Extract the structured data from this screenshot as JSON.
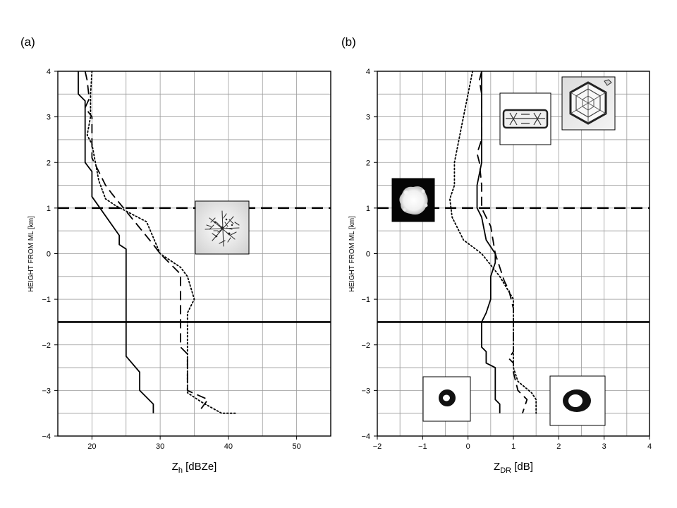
{
  "chart_data": [
    {
      "panel_label": "(a)",
      "type": "line",
      "xlabel_main": "Z",
      "xlabel_sub": "h",
      "xlabel_rest": " [dBZe]",
      "ylabel": "HEIGHT FROM ML [km]",
      "xlim": [
        15,
        55
      ],
      "ylim": [
        -4,
        4
      ],
      "grid": true,
      "xticks": [
        20,
        30,
        40,
        50
      ],
      "yticks": [
        -4,
        -3,
        -2,
        -1,
        0,
        1,
        2,
        3,
        4
      ],
      "series": [
        {
          "style": "solid",
          "points": [
            [
              18,
              4
            ],
            [
              18,
              3.5
            ],
            [
              19,
              3.35
            ],
            [
              19,
              2
            ],
            [
              20,
              1.8
            ],
            [
              20,
              1.25
            ],
            [
              24,
              0.4
            ],
            [
              24,
              0.2
            ],
            [
              25,
              0.1
            ],
            [
              25,
              -2.25
            ],
            [
              27,
              -2.6
            ],
            [
              27,
              -3
            ],
            [
              29,
              -3.3
            ],
            [
              29,
              -3.5
            ]
          ]
        },
        {
          "style": "dashed",
          "points": [
            [
              19,
              4
            ],
            [
              19.3,
              3.8
            ],
            [
              19.6,
              3.4
            ],
            [
              19,
              3.2
            ],
            [
              20,
              3
            ],
            [
              20,
              2.1
            ],
            [
              22,
              1.5
            ],
            [
              23,
              1.3
            ],
            [
              29,
              0.2
            ],
            [
              30,
              0
            ],
            [
              33,
              -0.45
            ],
            [
              33,
              -2.05
            ],
            [
              34,
              -2.2
            ],
            [
              34,
              -3
            ],
            [
              37,
              -3.2
            ],
            [
              36,
              -3.4
            ]
          ]
        },
        {
          "style": "dotted",
          "points": [
            [
              20,
              4
            ],
            [
              19.8,
              3.5
            ],
            [
              19.8,
              3
            ],
            [
              19.3,
              2.6
            ],
            [
              20,
              2.4
            ],
            [
              21,
              1.6
            ],
            [
              22,
              1.2
            ],
            [
              23.5,
              1.05
            ],
            [
              28,
              0.7
            ],
            [
              30,
              0
            ],
            [
              33,
              -0.3
            ],
            [
              34,
              -0.5
            ],
            [
              35,
              -1
            ],
            [
              34,
              -1.3
            ],
            [
              34,
              -3.05
            ],
            [
              36,
              -3.25
            ],
            [
              39,
              -3.5
            ],
            [
              41,
              -3.5
            ]
          ]
        }
      ],
      "reference_lines": [
        {
          "y": 1,
          "style": "dashed"
        },
        {
          "y": -1.5,
          "style": "solid"
        }
      ],
      "inset_images": [
        "snowflake-aggregate"
      ]
    },
    {
      "panel_label": "(b)",
      "type": "line",
      "xlabel_main": "Z",
      "xlabel_sub": "DR",
      "xlabel_rest": " [dB]",
      "ylabel": "HEIGHT FROM ML [km]",
      "xlim": [
        -2,
        4
      ],
      "ylim": [
        -4,
        4
      ],
      "grid": true,
      "xticks": [
        -2,
        -1,
        0,
        1,
        2,
        3,
        4
      ],
      "yticks": [
        -4,
        -3,
        -2,
        -1,
        0,
        1,
        2,
        3,
        4
      ],
      "series": [
        {
          "style": "solid",
          "points": [
            [
              0.3,
              4
            ],
            [
              0.3,
              2
            ],
            [
              0.2,
              1.5
            ],
            [
              0.2,
              1
            ],
            [
              0.3,
              0.8
            ],
            [
              0.4,
              0.3
            ],
            [
              0.6,
              0
            ],
            [
              0.6,
              -0.2
            ],
            [
              0.5,
              -0.5
            ],
            [
              0.5,
              -1
            ],
            [
              0.4,
              -1.3
            ],
            [
              0.3,
              -1.5
            ],
            [
              0.3,
              -2.05
            ],
            [
              0.4,
              -2.15
            ],
            [
              0.4,
              -2.4
            ],
            [
              0.6,
              -2.5
            ],
            [
              0.6,
              -3.2
            ],
            [
              0.7,
              -3.3
            ],
            [
              0.7,
              -3.5
            ]
          ]
        },
        {
          "style": "dashed",
          "points": [
            [
              0.3,
              4
            ],
            [
              0.25,
              3.8
            ],
            [
              0.3,
              3.5
            ],
            [
              0.3,
              2.5
            ],
            [
              0.2,
              2.2
            ],
            [
              0.25,
              2
            ],
            [
              0.3,
              1.5
            ],
            [
              0.3,
              1
            ],
            [
              0.5,
              0.6
            ],
            [
              0.6,
              0
            ],
            [
              0.8,
              -0.6
            ],
            [
              0.9,
              -0.8
            ],
            [
              1,
              -1.2
            ],
            [
              1,
              -2.15
            ],
            [
              0.9,
              -2.3
            ],
            [
              1,
              -2.4
            ],
            [
              1,
              -2.6
            ],
            [
              1.1,
              -3
            ],
            [
              1.3,
              -3.2
            ],
            [
              1.2,
              -3.5
            ]
          ]
        },
        {
          "style": "dotted",
          "points": [
            [
              0.1,
              4
            ],
            [
              0,
              3.5
            ],
            [
              -0.1,
              3
            ],
            [
              -0.2,
              2.5
            ],
            [
              -0.3,
              2
            ],
            [
              -0.3,
              1.5
            ],
            [
              -0.4,
              1.2
            ],
            [
              -0.35,
              0.8
            ],
            [
              -0.1,
              0.3
            ],
            [
              0.3,
              0
            ],
            [
              0.7,
              -0.5
            ],
            [
              1,
              -1
            ],
            [
              1,
              -2.5
            ],
            [
              1.1,
              -2.8
            ],
            [
              1.4,
              -3.05
            ],
            [
              1.5,
              -3.2
            ],
            [
              1.5,
              -3.5
            ]
          ]
        }
      ],
      "reference_lines": [
        {
          "y": 1,
          "style": "dashed"
        },
        {
          "y": -1.5,
          "style": "solid"
        }
      ],
      "inset_images": [
        "columnar-crystal",
        "hexagonal-plate-crystal",
        "graupel-particle",
        "small-drop",
        "large-drop"
      ]
    }
  ]
}
